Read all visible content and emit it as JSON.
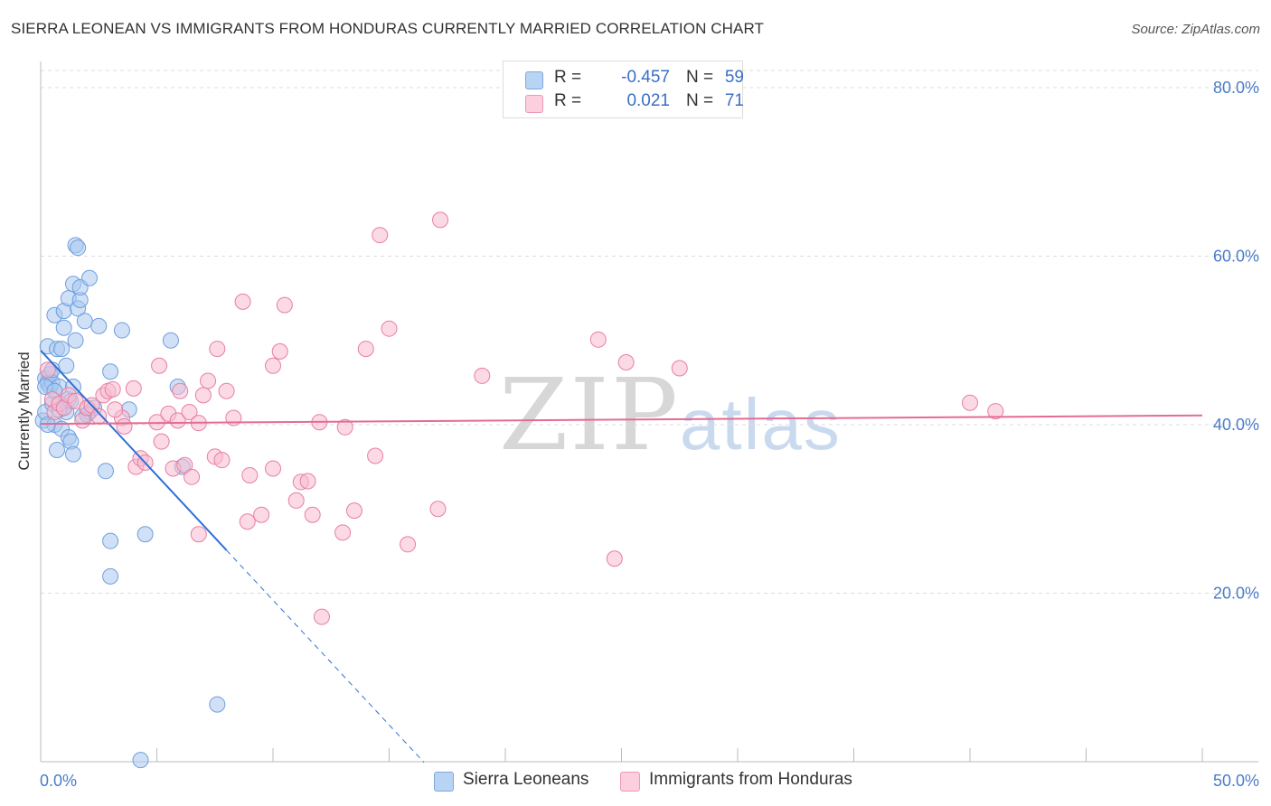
{
  "header": {
    "title": "SIERRA LEONEAN VS IMMIGRANTS FROM HONDURAS CURRENTLY MARRIED CORRELATION CHART",
    "source": "Source: ZipAtlas.com"
  },
  "watermark": {
    "zip": "ZIP",
    "atlas": "atlas"
  },
  "legend": {
    "rows": [
      {
        "r_label": "R =",
        "r_value": "-0.457",
        "n_label": "N =",
        "n_value": "59",
        "color": "#a9c8f0"
      },
      {
        "r_label": "R =",
        "r_value": "0.021",
        "n_label": "N =",
        "n_value": "71",
        "color": "#f7bcd0"
      }
    ]
  },
  "bottom_legend": {
    "items": [
      {
        "label": "Sierra Leoneans",
        "color": "#a9c8f0"
      },
      {
        "label": "Immigrants from Honduras",
        "color": "#f7bcd0"
      }
    ]
  },
  "chart_data": {
    "type": "scatter",
    "title": "SIERRA LEONEAN VS IMMIGRANTS FROM HONDURAS CURRENTLY MARRIED CORRELATION CHART",
    "xlabel": "",
    "ylabel": "Currently Married",
    "xlim": [
      0,
      50
    ],
    "ylim": [
      0,
      80
    ],
    "x_tick_labels": [
      "0.0%",
      "50.0%"
    ],
    "y_ticks": [
      20,
      40,
      60,
      80
    ],
    "y_tick_labels": [
      "20.0%",
      "40.0%",
      "60.0%",
      "80.0%"
    ],
    "grid": true,
    "series": [
      {
        "name": "Sierra Leoneans",
        "color": "#a9c8f0",
        "edge": "#6e9fdc",
        "line_color": "#2f6fd6",
        "trend": {
          "x0": 0.0,
          "y0": 48.8,
          "x1": 8.0,
          "y1": 25.1,
          "dash_to_x": 16.5
        },
        "points": [
          [
            0.1,
            40.5
          ],
          [
            0.2,
            41.5
          ],
          [
            0.2,
            45.5
          ],
          [
            0.3,
            45.0
          ],
          [
            0.3,
            49.3
          ],
          [
            0.4,
            44.5
          ],
          [
            0.4,
            46.0
          ],
          [
            0.5,
            45.0
          ],
          [
            0.5,
            42.5
          ],
          [
            0.6,
            53.0
          ],
          [
            0.6,
            40.0
          ],
          [
            0.7,
            37.0
          ],
          [
            0.7,
            49.0
          ],
          [
            0.8,
            44.5
          ],
          [
            0.9,
            49.0
          ],
          [
            0.9,
            39.5
          ],
          [
            1.0,
            53.5
          ],
          [
            1.0,
            51.5
          ],
          [
            1.0,
            42.0
          ],
          [
            1.1,
            41.5
          ],
          [
            1.1,
            47.0
          ],
          [
            1.2,
            55.0
          ],
          [
            1.2,
            43.0
          ],
          [
            1.2,
            38.5
          ],
          [
            1.3,
            38.0
          ],
          [
            1.4,
            36.5
          ],
          [
            1.4,
            44.5
          ],
          [
            1.4,
            56.7
          ],
          [
            1.5,
            50.0
          ],
          [
            1.5,
            61.3
          ],
          [
            1.6,
            61.0
          ],
          [
            1.6,
            53.8
          ],
          [
            1.7,
            54.8
          ],
          [
            1.7,
            56.3
          ],
          [
            1.8,
            41.0
          ],
          [
            1.9,
            52.3
          ],
          [
            2.1,
            57.4
          ],
          [
            2.1,
            41.5
          ],
          [
            2.3,
            42.0
          ],
          [
            2.5,
            51.7
          ],
          [
            2.8,
            34.5
          ],
          [
            3.0,
            46.3
          ],
          [
            3.0,
            26.2
          ],
          [
            3.0,
            22.0
          ],
          [
            3.5,
            51.2
          ],
          [
            3.8,
            41.8
          ],
          [
            4.3,
            0.2
          ],
          [
            4.5,
            27.0
          ],
          [
            5.6,
            50.0
          ],
          [
            5.9,
            44.5
          ],
          [
            6.1,
            35.0
          ],
          [
            7.6,
            6.8
          ],
          [
            0.3,
            40.0
          ],
          [
            0.5,
            46.5
          ],
          [
            0.8,
            41.8
          ],
          [
            1.3,
            42.8
          ],
          [
            0.2,
            44.5
          ],
          [
            0.6,
            44.0
          ],
          [
            2.0,
            41.2
          ]
        ]
      },
      {
        "name": "Immigrants from Honduras",
        "color": "#f7bcd0",
        "edge": "#e87ea2",
        "line_color": "#e46b94",
        "trend": {
          "x0": 0.0,
          "y0": 40.1,
          "x1": 50.0,
          "y1": 41.1
        },
        "points": [
          [
            0.3,
            46.5
          ],
          [
            0.5,
            43.0
          ],
          [
            0.6,
            41.5
          ],
          [
            0.8,
            42.5
          ],
          [
            1.0,
            42.0
          ],
          [
            1.2,
            43.5
          ],
          [
            1.5,
            42.8
          ],
          [
            1.8,
            40.5
          ],
          [
            2.0,
            42.0
          ],
          [
            2.2,
            42.3
          ],
          [
            2.5,
            41.0
          ],
          [
            2.7,
            43.5
          ],
          [
            2.9,
            44.0
          ],
          [
            3.1,
            44.2
          ],
          [
            3.5,
            40.8
          ],
          [
            3.6,
            39.8
          ],
          [
            4.0,
            44.3
          ],
          [
            4.1,
            35.0
          ],
          [
            4.3,
            36.0
          ],
          [
            4.5,
            35.5
          ],
          [
            5.0,
            40.3
          ],
          [
            5.1,
            47.0
          ],
          [
            5.2,
            38.0
          ],
          [
            5.5,
            41.3
          ],
          [
            5.7,
            34.8
          ],
          [
            5.9,
            40.5
          ],
          [
            6.0,
            44.0
          ],
          [
            6.2,
            35.2
          ],
          [
            6.4,
            41.5
          ],
          [
            6.5,
            33.8
          ],
          [
            6.8,
            27.0
          ],
          [
            7.0,
            43.5
          ],
          [
            7.2,
            45.2
          ],
          [
            7.5,
            36.2
          ],
          [
            7.6,
            49.0
          ],
          [
            7.8,
            35.8
          ],
          [
            8.0,
            44.0
          ],
          [
            8.3,
            40.8
          ],
          [
            8.7,
            54.6
          ],
          [
            8.9,
            28.5
          ],
          [
            9.0,
            34.0
          ],
          [
            9.5,
            29.3
          ],
          [
            10.0,
            34.8
          ],
          [
            10.0,
            47.0
          ],
          [
            10.3,
            48.7
          ],
          [
            10.5,
            54.2
          ],
          [
            11.0,
            31.0
          ],
          [
            11.2,
            33.2
          ],
          [
            11.5,
            33.3
          ],
          [
            11.7,
            29.3
          ],
          [
            12.0,
            40.3
          ],
          [
            12.1,
            17.2
          ],
          [
            13.0,
            27.2
          ],
          [
            13.1,
            39.7
          ],
          [
            13.5,
            29.8
          ],
          [
            14.0,
            49.0
          ],
          [
            14.4,
            36.3
          ],
          [
            14.6,
            62.5
          ],
          [
            15.0,
            51.4
          ],
          [
            15.8,
            25.8
          ],
          [
            17.1,
            30.0
          ],
          [
            17.2,
            64.3
          ],
          [
            19.0,
            45.8
          ],
          [
            24.0,
            50.1
          ],
          [
            24.7,
            24.1
          ],
          [
            25.2,
            47.4
          ],
          [
            27.5,
            46.7
          ],
          [
            40.0,
            42.6
          ],
          [
            41.1,
            41.6
          ],
          [
            3.2,
            41.8
          ],
          [
            6.8,
            40.2
          ]
        ]
      }
    ]
  }
}
